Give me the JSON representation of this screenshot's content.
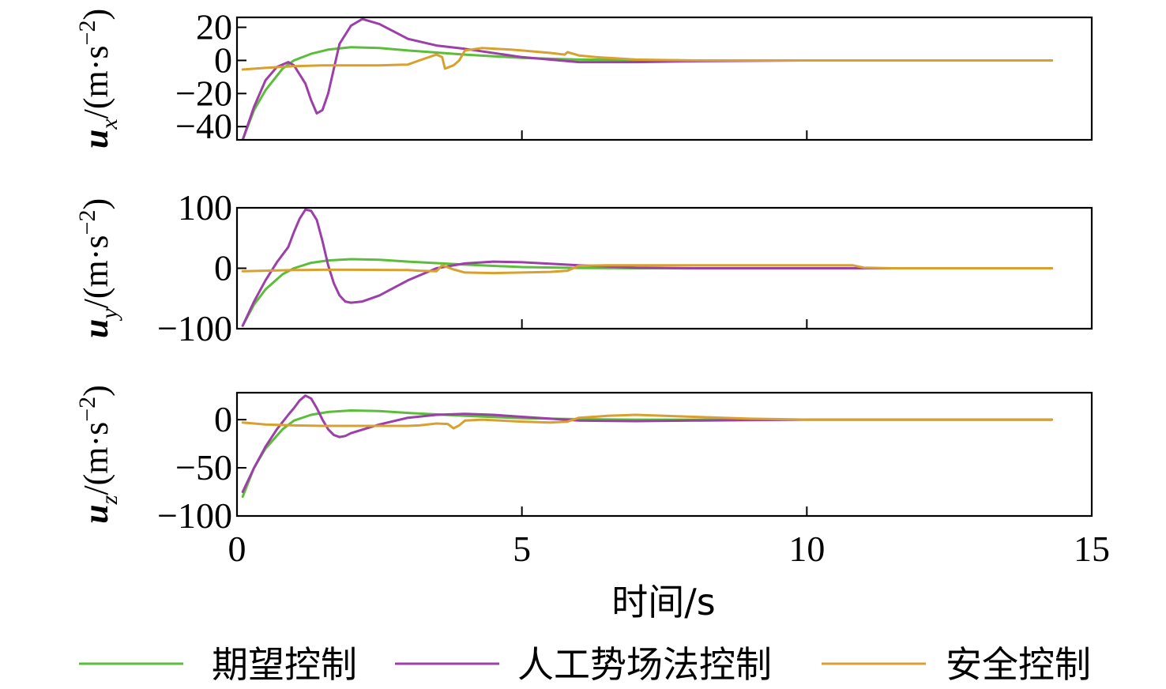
{
  "chart_data": {
    "type": "line",
    "xlabel": "时间/s",
    "xlim": [
      0,
      15
    ],
    "xticks": [
      "0",
      "5",
      "10",
      "15"
    ],
    "xtick_values": [
      0,
      5,
      10,
      15
    ],
    "legend_position": "bottom",
    "legend": [
      "期望控制",
      "人工势场法控制",
      "安全控制"
    ],
    "colors": [
      "#5bbd3a",
      "#9c3fa8",
      "#d9a030"
    ],
    "panels": [
      {
        "id": "ux",
        "ylabel_var": "u",
        "ylabel_sub": "x",
        "ylabel_unit": "/(m·s",
        "ylabel_exp": "−2",
        "ylabel_close": ")",
        "ylim": [
          -48,
          26
        ],
        "ytick_values": [
          20,
          0,
          -20,
          -40
        ],
        "yticks": [
          "20",
          "0",
          "−20",
          "−40"
        ],
        "series": [
          {
            "name": "期望控制",
            "x": [
              0.1,
              0.3,
              0.5,
              0.8,
              1.0,
              1.3,
              1.6,
              2.0,
              2.5,
              3.0,
              4.0,
              5.0,
              6.0,
              7.0,
              8.0,
              10.0,
              12.0,
              14.3
            ],
            "y": [
              -48,
              -30,
              -18,
              -5,
              0,
              4,
              6.5,
              8,
              7.5,
              6,
              3.5,
              1.5,
              0.5,
              0.2,
              0,
              0,
              0,
              0
            ]
          },
          {
            "name": "人工势场法控制",
            "x": [
              0.1,
              0.3,
              0.5,
              0.7,
              0.9,
              1.0,
              1.2,
              1.3,
              1.4,
              1.5,
              1.6,
              1.7,
              1.8,
              2.0,
              2.2,
              2.5,
              3.0,
              3.5,
              4.0,
              5.0,
              6.0,
              7.0,
              8.0,
              10.0,
              14.3
            ],
            "y": [
              -48,
              -28,
              -12,
              -4,
              -1,
              -3,
              -14,
              -24,
              -32,
              -30,
              -20,
              -5,
              10,
              21,
              25,
              22,
              13,
              9,
              7,
              2,
              -1,
              -1,
              -0.5,
              0,
              0
            ]
          },
          {
            "name": "安全控制",
            "x": [
              0.1,
              0.5,
              1.0,
              1.5,
              2.0,
              2.5,
              3.0,
              3.2,
              3.5,
              3.6,
              3.65,
              3.8,
              3.9,
              4.0,
              4.3,
              4.8,
              5.0,
              5.5,
              5.75,
              5.8,
              6.0,
              6.3,
              7.0,
              8.0,
              10.0,
              14.3
            ],
            "y": [
              -5.5,
              -4.5,
              -3.5,
              -3,
              -3,
              -3,
              -2.5,
              0,
              3.5,
              2,
              -5,
              -3,
              0,
              6,
              7.5,
              6.5,
              6,
              4.5,
              3.5,
              5,
              3,
              2,
              0.5,
              0,
              0,
              0
            ]
          }
        ]
      },
      {
        "id": "uy",
        "ylabel_var": "u",
        "ylabel_sub": "y",
        "ylabel_unit": "/(m·s",
        "ylabel_exp": "−2",
        "ylabel_close": ")",
        "ylim": [
          -100,
          100
        ],
        "ytick_values": [
          100,
          0,
          -100
        ],
        "yticks": [
          "100",
          "0",
          "−100"
        ],
        "series": [
          {
            "name": "期望控制",
            "x": [
              0.1,
              0.3,
              0.5,
              0.8,
              1.0,
              1.3,
              1.6,
              2.0,
              2.5,
              3.0,
              4.0,
              5.0,
              6.0,
              7.0,
              8.0,
              10.0,
              14.3
            ],
            "y": [
              -95,
              -60,
              -35,
              -10,
              0,
              9,
              13,
              15,
              14,
              11,
              6,
              2,
              0.5,
              0,
              0,
              0,
              0
            ]
          },
          {
            "name": "人工势场法控制",
            "x": [
              0.1,
              0.3,
              0.5,
              0.7,
              0.9,
              1.0,
              1.1,
              1.2,
              1.3,
              1.4,
              1.5,
              1.6,
              1.7,
              1.8,
              1.9,
              2.0,
              2.2,
              2.5,
              3.0,
              3.5,
              4.0,
              4.5,
              5.0,
              6.0,
              7.0,
              8.0,
              10.0,
              14.3
            ],
            "y": [
              -95,
              -55,
              -20,
              10,
              35,
              60,
              82,
              97,
              95,
              80,
              45,
              5,
              -25,
              -45,
              -55,
              -57,
              -55,
              -45,
              -20,
              0,
              8,
              11,
              10,
              5,
              1,
              0,
              0,
              0
            ]
          },
          {
            "name": "安全控制",
            "x": [
              0.1,
              0.5,
              1.0,
              1.5,
              2.0,
              3.0,
              3.2,
              3.5,
              3.6,
              3.8,
              4.0,
              4.5,
              5.0,
              5.5,
              5.8,
              6.0,
              6.5,
              7.0,
              8.0,
              9.0,
              10.0,
              10.5,
              10.8,
              11.0,
              11.5,
              12.0,
              14.3
            ],
            "y": [
              -5,
              -4,
              -3,
              -2.5,
              -2.5,
              -3,
              -4,
              -5,
              5,
              -2,
              -7,
              -8,
              -7,
              -6,
              -4,
              4,
              5,
              5,
              5,
              5,
              5,
              5,
              5,
              1,
              0,
              0,
              0
            ]
          }
        ]
      },
      {
        "id": "uz",
        "ylabel_var": "u",
        "ylabel_sub": "z",
        "ylabel_unit": "/(m·s",
        "ylabel_exp": "−2",
        "ylabel_close": ")",
        "ylim": [
          -100,
          28
        ],
        "ytick_values": [
          0,
          -50,
          -100
        ],
        "yticks": [
          "0",
          "−50",
          "−100"
        ],
        "series": [
          {
            "name": "期望控制",
            "x": [
              0.1,
              0.3,
              0.5,
              0.8,
              1.0,
              1.3,
              1.6,
              2.0,
              2.5,
              3.0,
              4.0,
              5.0,
              6.0,
              7.0,
              8.0,
              10.0,
              14.3
            ],
            "y": [
              -80,
              -50,
              -30,
              -10,
              -1,
              5,
              8,
              9.5,
              9,
              7,
              4,
              1.5,
              0.5,
              0,
              0,
              0,
              0
            ]
          },
          {
            "name": "人工势场法控制",
            "x": [
              0.1,
              0.3,
              0.5,
              0.7,
              0.9,
              1.0,
              1.1,
              1.2,
              1.3,
              1.4,
              1.5,
              1.6,
              1.7,
              1.8,
              1.9,
              2.0,
              2.5,
              3.0,
              3.5,
              4.0,
              4.5,
              5.0,
              6.0,
              7.0,
              8.0,
              10.0,
              14.3
            ],
            "y": [
              -75,
              -50,
              -28,
              -10,
              5,
              12,
              20,
              25,
              22,
              12,
              0,
              -10,
              -16,
              -18,
              -17,
              -14,
              -5,
              2,
              5,
              6,
              5,
              3,
              -1,
              -1.5,
              -1,
              0,
              0
            ]
          },
          {
            "name": "安全控制",
            "x": [
              0.1,
              0.5,
              1.0,
              1.5,
              2.0,
              3.0,
              3.2,
              3.5,
              3.7,
              3.8,
              3.9,
              4.0,
              4.3,
              5.0,
              5.5,
              5.8,
              6.0,
              6.5,
              7.0,
              8.0,
              9.0,
              10.0,
              12.0,
              14.3
            ],
            "y": [
              -3,
              -5,
              -6,
              -6.5,
              -6.5,
              -6.5,
              -6,
              -4,
              -4.5,
              -9,
              -6,
              -1,
              0,
              -2,
              -3,
              -2,
              2,
              4,
              5,
              3,
              1,
              0,
              0,
              0
            ]
          }
        ]
      }
    ]
  }
}
